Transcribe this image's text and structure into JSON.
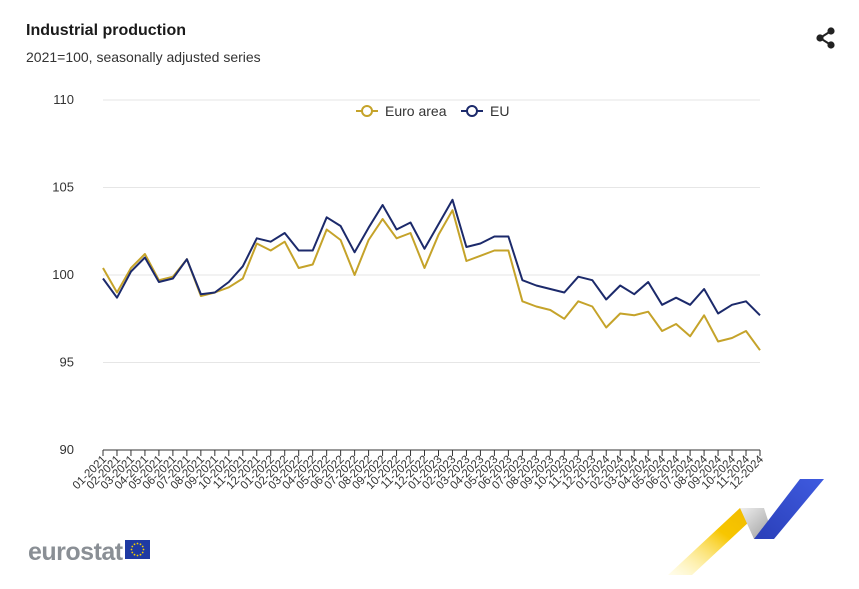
{
  "header": {
    "title": "Industrial production",
    "subtitle": "2021=100, seasonally adjusted series"
  },
  "footer": {
    "logo_text": "eurostat"
  },
  "icons": {
    "share": "share-icon",
    "flag": "eu-flag-icon"
  },
  "colors": {
    "euro_area": "#c5a32a",
    "eu": "#1c2a6b",
    "grid": "#e6e6e6",
    "axis": "#333333"
  },
  "chart_data": {
    "type": "line",
    "title": "Industrial production",
    "subtitle": "2021=100, seasonally adjusted series",
    "xlabel": "",
    "ylabel": "",
    "ylim": [
      90,
      110
    ],
    "yticks": [
      110,
      105,
      100,
      95,
      90
    ],
    "grid": true,
    "legend_placement": "top-center",
    "categories": [
      "01-2021",
      "02-2021",
      "03-2021",
      "04-2021",
      "05-2021",
      "06-2021",
      "07-2021",
      "08-2021",
      "09-2021",
      "10-2021",
      "11-2021",
      "12-2021",
      "01-2022",
      "02-2022",
      "03-2022",
      "04-2022",
      "05-2022",
      "06-2022",
      "07-2022",
      "08-2022",
      "09-2022",
      "10-2022",
      "11-2022",
      "12-2022",
      "01-2023",
      "02-2023",
      "03-2023",
      "04-2023",
      "05-2023",
      "06-2023",
      "07-2023",
      "08-2023",
      "09-2023",
      "10-2023",
      "11-2023",
      "12-2023",
      "01-2024",
      "02-2024",
      "03-2024",
      "04-2024",
      "05-2024",
      "06-2024",
      "07-2024",
      "08-2024",
      "09-2024",
      "10-2024",
      "11-2024",
      "12-2024"
    ],
    "series": [
      {
        "name": "Euro area",
        "color": "#c5a32a",
        "values": [
          100.4,
          99.0,
          100.4,
          101.2,
          99.7,
          99.9,
          100.9,
          98.8,
          99.0,
          99.3,
          99.8,
          101.8,
          101.4,
          101.9,
          100.4,
          100.6,
          102.6,
          102.0,
          100.0,
          102.0,
          103.2,
          102.1,
          102.4,
          100.4,
          102.3,
          103.7,
          100.8,
          101.1,
          101.4,
          101.4,
          98.5,
          98.2,
          98.0,
          97.5,
          98.5,
          98.2,
          97.0,
          97.8,
          97.7,
          97.9,
          96.8,
          97.2,
          96.5,
          97.7,
          96.2,
          96.4,
          96.8,
          95.7
        ]
      },
      {
        "name": "EU",
        "color": "#1c2a6b",
        "values": [
          99.8,
          98.7,
          100.2,
          101.0,
          99.6,
          99.8,
          100.9,
          98.9,
          99.0,
          99.6,
          100.5,
          102.1,
          101.9,
          102.4,
          101.4,
          101.4,
          103.3,
          102.8,
          101.3,
          102.7,
          104.0,
          102.6,
          103.0,
          101.5,
          102.9,
          104.3,
          101.6,
          101.8,
          102.2,
          102.2,
          99.7,
          99.4,
          99.2,
          99.0,
          99.9,
          99.7,
          98.6,
          99.4,
          98.9,
          99.6,
          98.3,
          98.7,
          98.3,
          99.2,
          97.8,
          98.3,
          98.5,
          97.7
        ]
      }
    ]
  }
}
